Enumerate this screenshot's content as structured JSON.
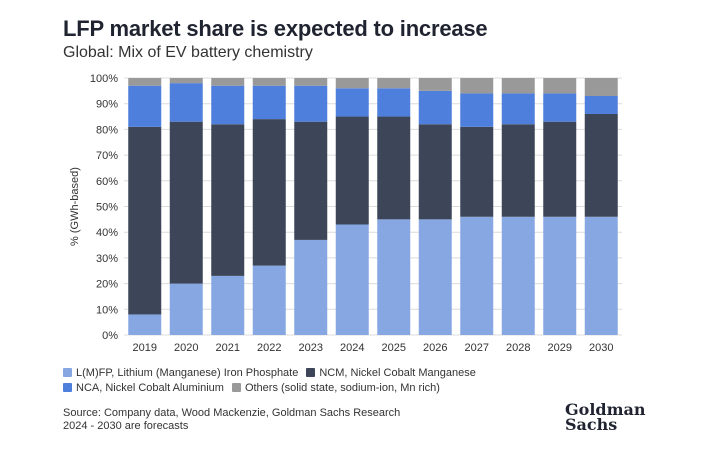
{
  "title": "LFP market share is expected to increase",
  "subtitle": "Global: Mix of EV battery chemistry",
  "chart_data": {
    "type": "bar",
    "stacked": true,
    "title": "LFP market share is expected to increase",
    "subtitle": "Global: Mix of EV battery chemistry",
    "xlabel": "",
    "ylabel": "% (GWh-based)",
    "ylim": [
      0,
      100
    ],
    "yticks": [
      "0%",
      "10%",
      "20%",
      "30%",
      "40%",
      "50%",
      "60%",
      "70%",
      "80%",
      "90%",
      "100%"
    ],
    "grid": true,
    "categories": [
      "2019",
      "2020",
      "2021",
      "2022",
      "2023",
      "2024",
      "2025",
      "2026",
      "2027",
      "2028",
      "2029",
      "2030"
    ],
    "series": [
      {
        "name": "L(M)FP, Lithium (Manganese) Iron Phosphate",
        "color": "#87a7e3",
        "values": [
          8,
          20,
          23,
          27,
          37,
          43,
          45,
          45,
          46,
          46,
          46,
          46
        ]
      },
      {
        "name": "NCM, Nickel Cobalt Manganese",
        "color": "#3c4658",
        "values": [
          73,
          63,
          59,
          57,
          46,
          42,
          40,
          37,
          35,
          36,
          37,
          40
        ]
      },
      {
        "name": "NCA, Nickel Cobalt Aluminium",
        "color": "#4f7fdc",
        "values": [
          16,
          15,
          15,
          13,
          14,
          11,
          11,
          13,
          13,
          12,
          11,
          7
        ]
      },
      {
        "name": "Others (solid state, sodium-ion, Mn rich)",
        "color": "#999999",
        "values": [
          3,
          2,
          3,
          3,
          3,
          4,
          4,
          5,
          6,
          6,
          6,
          7
        ]
      }
    ],
    "legend": "bottom-left"
  },
  "source": {
    "line1": "Source: Company data, Wood Mackenzie, Goldman Sachs Research",
    "line2": "2024 - 2030 are forecasts"
  },
  "logo": {
    "line1": "Goldman",
    "line2": "Sachs"
  }
}
